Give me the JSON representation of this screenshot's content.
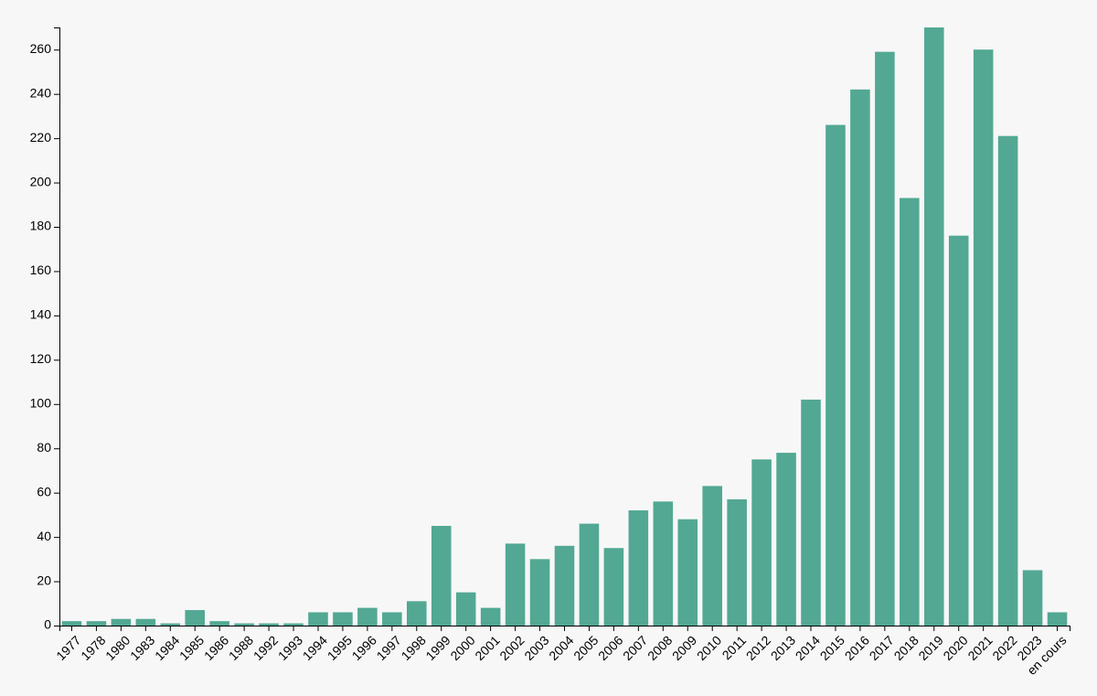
{
  "chart_data": {
    "type": "bar",
    "title": "",
    "xlabel": "",
    "ylabel": "",
    "categories": [
      "1977",
      "1978",
      "1980",
      "1983",
      "1984",
      "1985",
      "1986",
      "1988",
      "1992",
      "1993",
      "1994",
      "1995",
      "1996",
      "1997",
      "1998",
      "1999",
      "2000",
      "2001",
      "2002",
      "2003",
      "2004",
      "2005",
      "2006",
      "2007",
      "2008",
      "2009",
      "2010",
      "2011",
      "2012",
      "2013",
      "2014",
      "2015",
      "2016",
      "2017",
      "2018",
      "2019",
      "2020",
      "2021",
      "2022",
      "2023",
      "en cours"
    ],
    "values": [
      2,
      2,
      3,
      3,
      1,
      7,
      2,
      1,
      1,
      1,
      6,
      6,
      8,
      6,
      11,
      45,
      15,
      8,
      37,
      30,
      36,
      46,
      35,
      52,
      56,
      48,
      63,
      57,
      75,
      78,
      102,
      226,
      242,
      259,
      193,
      270,
      176,
      260,
      221,
      25,
      6
    ],
    "ylim": [
      0,
      270
    ],
    "yticks": [
      0,
      20,
      40,
      60,
      80,
      100,
      120,
      140,
      160,
      180,
      200,
      220,
      240,
      260
    ],
    "bar_color": "#52a893",
    "background": "#f7f7f7",
    "grid": false,
    "legend": "none"
  }
}
